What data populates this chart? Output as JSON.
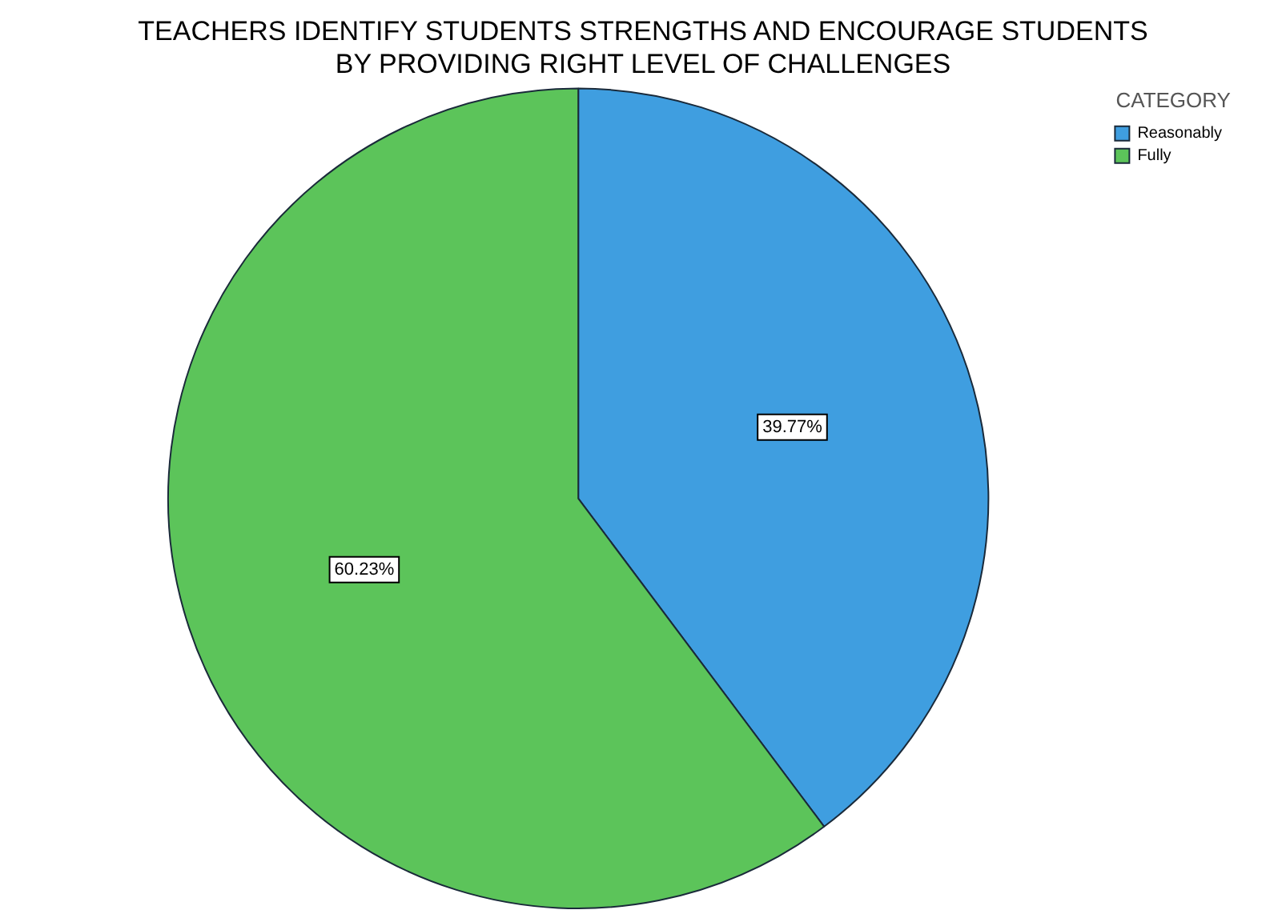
{
  "chart_data": {
    "type": "pie",
    "title": "TEACHERS IDENTIFY STUDENTS STRENGTHS AND ENCOURAGE STUDENTS BY PROVIDING RIGHT LEVEL OF CHALLENGES",
    "legend_title": "CATEGORY",
    "legend": "top right",
    "categories": [
      "Reasonably",
      "Fully"
    ],
    "values": [
      39.77,
      60.23
    ],
    "value_labels": [
      "39.77%",
      "60.23%"
    ],
    "colors": [
      "#3f9ee0",
      "#5cc45a"
    ]
  }
}
